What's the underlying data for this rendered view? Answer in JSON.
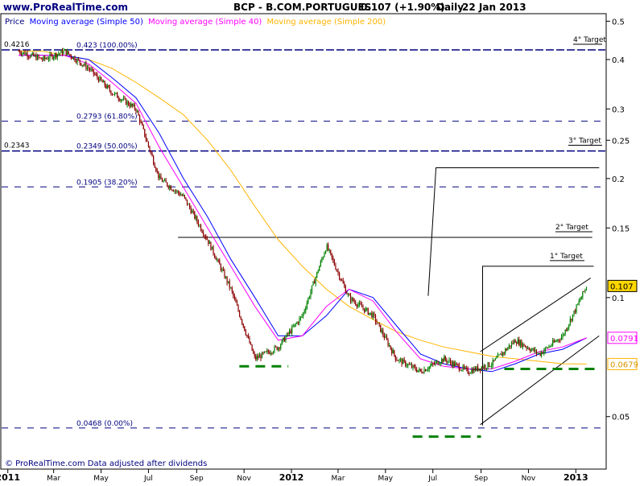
{
  "header": {
    "site": "www.ProRealTime.com",
    "instrument": "BCP - B.COM.PORTUGUES",
    "quote": "0.107 (+1.90%)",
    "period": "Daily",
    "date": "22 Jan 2013"
  },
  "legend": {
    "price": "Price",
    "ma50": "Moving average (Simple 50)",
    "ma40": "Moving average (Simple 40)",
    "ma200": "Moving average (Simple 200)"
  },
  "footer": {
    "note": "© ProRealTime.com  Data adjusted after dividends"
  },
  "colors": {
    "price_up": "#008000",
    "price_down": "#8b0000",
    "ma50": "#0000ff",
    "ma40": "#ff00ff",
    "ma200": "#ffb400",
    "fib_line": "#000080",
    "support_dash": "#008000",
    "last_price_box": "#ffd700"
  },
  "chart_data": {
    "type": "line",
    "title": "BCP - B.COM.PORTUGUES",
    "ylim": [
      0.037,
      0.52
    ],
    "y_scale": "log",
    "yticks": [
      0.05,
      0.1,
      0.15,
      0.2,
      0.25,
      0.3,
      0.4,
      0.5
    ],
    "x_labels": [
      "2011",
      "Mar",
      "May",
      "Jul",
      "Sep",
      "Nov",
      "2012",
      "Mar",
      "May",
      "Jul",
      "Sep",
      "Nov",
      "2013"
    ],
    "series": [
      {
        "name": "Price",
        "x": [
          "2011-01",
          "2011-02",
          "2011-03",
          "2011-04",
          "2011-05",
          "2011-06",
          "2011-07",
          "2011-08",
          "2011-09",
          "2011-10",
          "2011-11",
          "2011-12",
          "2012-01",
          "2012-02",
          "2012-03",
          "2012-04",
          "2012-05",
          "2012-06",
          "2012-07",
          "2012-08",
          "2012-09",
          "2012-10",
          "2012-11",
          "2012-12",
          "2013-01"
        ],
        "values": [
          0.42,
          0.4,
          0.42,
          0.38,
          0.33,
          0.3,
          0.2,
          0.18,
          0.14,
          0.105,
          0.07,
          0.075,
          0.09,
          0.135,
          0.1,
          0.09,
          0.07,
          0.065,
          0.07,
          0.065,
          0.068,
          0.078,
          0.072,
          0.08,
          0.107
        ]
      },
      {
        "name": "Moving average (Simple 50)",
        "x": [
          "2011-01",
          "2011-02",
          "2011-03",
          "2011-04",
          "2011-05",
          "2011-06",
          "2011-07",
          "2011-08",
          "2011-09",
          "2011-10",
          "2011-11",
          "2011-12",
          "2012-01",
          "2012-02",
          "2012-03",
          "2012-04",
          "2012-05",
          "2012-06",
          "2012-07",
          "2012-08",
          "2012-09",
          "2012-10",
          "2012-11",
          "2012-12",
          "2013-01"
        ],
        "values": [
          0.41,
          0.41,
          0.41,
          0.4,
          0.36,
          0.32,
          0.26,
          0.2,
          0.16,
          0.125,
          0.1,
          0.08,
          0.08,
          0.09,
          0.105,
          0.1,
          0.085,
          0.072,
          0.068,
          0.066,
          0.065,
          0.068,
          0.072,
          0.074,
          0.0791
        ]
      },
      {
        "name": "Moving average (Simple 40)",
        "x": [
          "2011-01",
          "2011-02",
          "2011-03",
          "2011-04",
          "2011-05",
          "2011-06",
          "2011-07",
          "2011-08",
          "2011-09",
          "2011-10",
          "2011-11",
          "2011-12",
          "2012-01",
          "2012-02",
          "2012-03",
          "2012-04",
          "2012-05",
          "2012-06",
          "2012-07",
          "2012-08",
          "2012-09",
          "2012-10",
          "2012-11",
          "2012-12",
          "2013-01"
        ],
        "values": [
          0.41,
          0.41,
          0.41,
          0.39,
          0.35,
          0.31,
          0.24,
          0.19,
          0.15,
          0.12,
          0.095,
          0.078,
          0.08,
          0.095,
          0.105,
          0.098,
          0.082,
          0.07,
          0.067,
          0.066,
          0.066,
          0.069,
          0.073,
          0.075,
          0.0791
        ]
      },
      {
        "name": "Moving average (Simple 200)",
        "x": [
          "2011-01",
          "2011-02",
          "2011-03",
          "2011-04",
          "2011-05",
          "2011-06",
          "2011-07",
          "2011-08",
          "2011-09",
          "2011-10",
          "2011-11",
          "2011-12",
          "2012-01",
          "2012-02",
          "2012-03",
          "2012-04",
          "2012-05",
          "2012-06",
          "2012-07",
          "2012-08",
          "2012-09",
          "2012-10",
          "2012-11",
          "2012-12",
          "2013-01"
        ],
        "values": [
          0.42,
          0.42,
          0.41,
          0.4,
          0.38,
          0.35,
          0.32,
          0.29,
          0.25,
          0.21,
          0.17,
          0.14,
          0.12,
          0.105,
          0.095,
          0.088,
          0.082,
          0.078,
          0.075,
          0.073,
          0.071,
          0.07,
          0.069,
          0.068,
          0.0679
        ]
      }
    ],
    "fib_levels": [
      {
        "label": "0.423 (100.00%)",
        "value": 0.423
      },
      {
        "label": "0.2793 (61.80%)",
        "value": 0.2793
      },
      {
        "label": "0.2349 (50.00%)",
        "value": 0.2349
      },
      {
        "label": "0.1905 (38.20%)",
        "value": 0.1905
      },
      {
        "label": "0.0468 (0.00%)",
        "value": 0.0468
      }
    ],
    "edge_labels": [
      "0.4216",
      "0.2343"
    ],
    "targets": [
      {
        "label": "4° Target",
        "value": 0.423
      },
      {
        "label": "3° Target",
        "value": 0.235
      },
      {
        "label": "2° Target",
        "value": 0.142
      },
      {
        "label": "1° Target",
        "value": 0.12
      }
    ],
    "last_values": [
      {
        "label": "0.107",
        "value": 0.107
      },
      {
        "label": "0.0791",
        "value": 0.0791
      },
      {
        "label": "0.0679",
        "value": 0.0679
      }
    ]
  }
}
